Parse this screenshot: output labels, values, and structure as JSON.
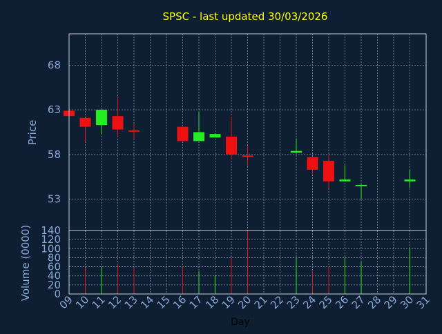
{
  "chart_data": {
    "type": "candlestick",
    "title": "SPSC - last updated 30/03/2026",
    "price_chart": {
      "ylabel": "Price",
      "ylim": [
        49.5,
        71.5
      ],
      "yticks": [
        53,
        58,
        63,
        68
      ],
      "grid": true
    },
    "volume_chart": {
      "ylabel": "Volume (0000)",
      "ylim": [
        0,
        140
      ],
      "yticks": [
        0,
        20,
        40,
        60,
        80,
        100,
        120,
        140
      ],
      "grid": true
    },
    "xlabel": "Day",
    "x_ticks": [
      "09",
      "10",
      "11",
      "12",
      "13",
      "14",
      "15",
      "16",
      "17",
      "18",
      "19",
      "20",
      "21",
      "22",
      "23",
      "24",
      "25",
      "26",
      "27",
      "28",
      "29",
      "30",
      "31"
    ],
    "candles": [
      {
        "day": "09",
        "open": 62.9,
        "high": 62.9,
        "low": 62.3,
        "close": 62.3,
        "volume": 0
      },
      {
        "day": "10",
        "open": 62.1,
        "high": 62.1,
        "low": 59.4,
        "close": 61.1,
        "volume": 58
      },
      {
        "day": "11",
        "open": 61.3,
        "high": 63.0,
        "low": 60.3,
        "close": 63.0,
        "volume": 60
      },
      {
        "day": "12",
        "open": 62.3,
        "high": 64.5,
        "low": 60.0,
        "close": 60.8,
        "volume": 66
      },
      {
        "day": "13",
        "open": 60.7,
        "high": 61.5,
        "low": 59.7,
        "close": 60.6,
        "volume": 58
      },
      {
        "day": "16",
        "open": 61.1,
        "high": 61.1,
        "low": 59.5,
        "close": 59.5,
        "volume": 60
      },
      {
        "day": "17",
        "open": 59.5,
        "high": 62.7,
        "low": 59.5,
        "close": 60.5,
        "volume": 50
      },
      {
        "day": "18",
        "open": 59.9,
        "high": 60.3,
        "low": 59.9,
        "close": 60.3,
        "volume": 42
      },
      {
        "day": "19",
        "open": 60.0,
        "high": 62.2,
        "low": 57.5,
        "close": 58.0,
        "volume": 80
      },
      {
        "day": "20",
        "open": 57.9,
        "high": 59.0,
        "low": 56.7,
        "close": 57.8,
        "volume": 140
      },
      {
        "day": "23",
        "open": 58.2,
        "high": 59.8,
        "low": 58.2,
        "close": 58.4,
        "volume": 80
      },
      {
        "day": "24",
        "open": 57.7,
        "high": 57.7,
        "low": 55.8,
        "close": 56.3,
        "volume": 50
      },
      {
        "day": "25",
        "open": 57.3,
        "high": 58.0,
        "low": 54.2,
        "close": 55.0,
        "volume": 60
      },
      {
        "day": "26",
        "open": 55.0,
        "high": 56.8,
        "low": 55.0,
        "close": 55.2,
        "volume": 80
      },
      {
        "day": "27",
        "open": 54.5,
        "high": 54.7,
        "low": 53.0,
        "close": 54.6,
        "volume": 70
      },
      {
        "day": "30",
        "open": 55.0,
        "high": 56.3,
        "low": 54.3,
        "close": 55.2,
        "volume": 100
      }
    ],
    "colors": {
      "background": "#0f1f33",
      "up": "#22ee22",
      "down": "#ee1111",
      "title": "#ffff00",
      "axis_text": "#8aa8d8",
      "grid": "#8899aa",
      "frame": "#c8d0dc"
    }
  }
}
